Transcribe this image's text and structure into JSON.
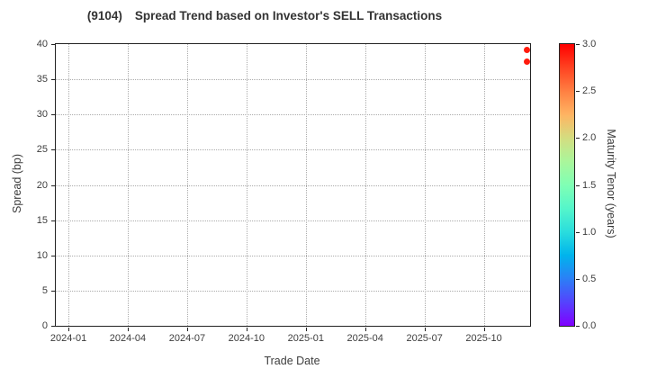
{
  "title": {
    "ticker": "(9104)",
    "text": "Spread Trend based on Investor's SELL Transactions"
  },
  "chart_data": {
    "type": "scatter",
    "title": "(9104)  Spread Trend based on Investor's SELL Transactions",
    "xlabel": "Trade Date",
    "ylabel": "Spread (bp)",
    "colorbar_label": "Maturity Tenor (years)",
    "ylim": [
      0,
      40
    ],
    "xlim_months_from_2024_01": [
      -0.64,
      23.34
    ],
    "grid": {
      "style": "dotted",
      "color": "#ababab"
    },
    "colormap": "rainbow",
    "colorbar_range": [
      0,
      3
    ],
    "y_ticks": [
      {
        "v": 0,
        "label": "0"
      },
      {
        "v": 5,
        "label": "5"
      },
      {
        "v": 10,
        "label": "10"
      },
      {
        "v": 15,
        "label": "15"
      },
      {
        "v": 20,
        "label": "20"
      },
      {
        "v": 25,
        "label": "25"
      },
      {
        "v": 30,
        "label": "30"
      },
      {
        "v": 35,
        "label": "35"
      },
      {
        "v": 40,
        "label": "40"
      }
    ],
    "x_ticks": [
      {
        "m": 0,
        "label": "2024-01"
      },
      {
        "m": 3,
        "label": "2024-04"
      },
      {
        "m": 6,
        "label": "2024-07"
      },
      {
        "m": 9,
        "label": "2024-10"
      },
      {
        "m": 12,
        "label": "2025-01"
      },
      {
        "m": 15,
        "label": "2025-04"
      },
      {
        "m": 18,
        "label": "2025-07"
      },
      {
        "m": 21,
        "label": "2025-10"
      }
    ],
    "colorbar_ticks": [
      {
        "v": 0.0,
        "label": "0.0"
      },
      {
        "v": 0.5,
        "label": "0.5"
      },
      {
        "v": 1.0,
        "label": "1.0"
      },
      {
        "v": 1.5,
        "label": "1.5"
      },
      {
        "v": 2.0,
        "label": "2.0"
      },
      {
        "v": 2.5,
        "label": "2.5"
      },
      {
        "v": 3.0,
        "label": "3.0"
      }
    ],
    "points": [
      {
        "trade_date": "2025-12",
        "m": 23.16,
        "spread_bp": 39.2,
        "maturity_tenor_years": 2.9
      },
      {
        "trade_date": "2025-12",
        "m": 23.16,
        "spread_bp": 37.5,
        "maturity_tenor_years": 2.9
      }
    ]
  }
}
